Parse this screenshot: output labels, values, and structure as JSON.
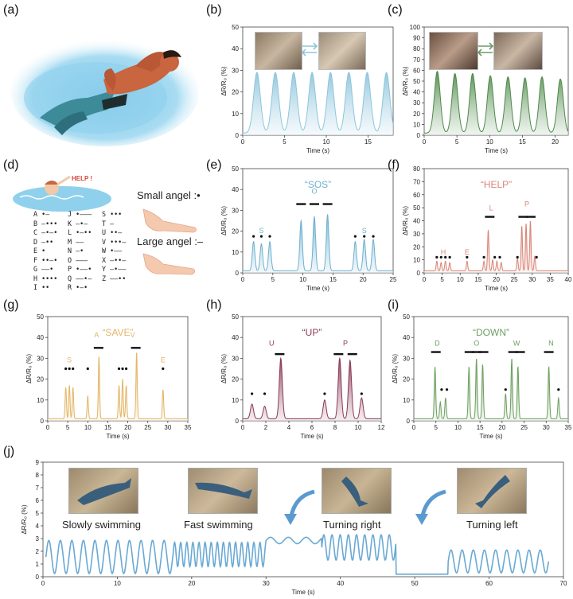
{
  "labels": {
    "a": "(a)",
    "b": "(b)",
    "c": "(c)",
    "d": "(d)",
    "e": "(e)",
    "f": "(f)",
    "g": "(g)",
    "h": "(h)",
    "i": "(i)",
    "j": "(j)"
  },
  "ylabel": "ΔR/R₀ (%)",
  "xlabel": "Time (s)",
  "help_text": "HELP !",
  "small_angle": "Small angel :•",
  "large_angle": "Large angel :–",
  "morse": [
    [
      "A •–",
      "J •–––",
      "S •••"
    ],
    [
      "B –•••",
      "K –•–",
      "T –"
    ],
    [
      "C –•–•",
      "L •–••",
      "U ••–"
    ],
    [
      "D –••",
      "M ––",
      "V •••–"
    ],
    [
      "E •",
      "N –•",
      "W •––"
    ],
    [
      "F ••–•",
      "O –––",
      "X –••–"
    ],
    [
      "G ––•",
      "P •––•",
      "Y –•––"
    ],
    [
      "H ••••",
      "Q ––•–",
      "Z ––••"
    ],
    [
      "I ••",
      "R •–•",
      ""
    ]
  ],
  "fish_labels": [
    "Slowly swimming",
    "Fast swimming",
    "Turning right",
    "Turning left"
  ],
  "chart_data": [
    {
      "id": "b",
      "type": "area",
      "color": "#8ec5dc",
      "xlim": [
        0,
        18
      ],
      "xticks": [
        0,
        5,
        10,
        15
      ],
      "ylim": [
        0,
        50
      ],
      "yticks": [
        0,
        10,
        20,
        30,
        40,
        50
      ],
      "peaks": [
        [
          1.7,
          29
        ],
        [
          3.9,
          29
        ],
        [
          6.1,
          29
        ],
        [
          8.3,
          29
        ],
        [
          10.5,
          29
        ],
        [
          12.7,
          29
        ],
        [
          14.9,
          29
        ],
        [
          17.2,
          29
        ]
      ],
      "width": 0.85
    },
    {
      "id": "c",
      "type": "area",
      "color": "#4e8a4a",
      "xlim": [
        0,
        22
      ],
      "xticks": [
        0,
        5,
        10,
        15,
        20
      ],
      "ylim": [
        0,
        100
      ],
      "yticks": [
        0,
        10,
        20,
        30,
        40,
        50,
        60,
        70,
        80,
        90,
        100
      ],
      "peaks": [
        [
          2.0,
          59
        ],
        [
          4.7,
          57
        ],
        [
          7.4,
          57
        ],
        [
          10.1,
          55
        ],
        [
          12.8,
          54
        ],
        [
          15.4,
          53
        ],
        [
          18.0,
          54
        ],
        [
          20.8,
          52
        ]
      ],
      "width": 0.95
    },
    {
      "id": "e",
      "type": "area",
      "title": "SOS",
      "color": "#6fb1cf",
      "xlim": [
        0,
        25
      ],
      "xticks": [
        0,
        5,
        10,
        15,
        20,
        25
      ],
      "ylim": [
        0,
        50
      ],
      "yticks": [
        0,
        10,
        20,
        30,
        40,
        50
      ],
      "peaks": [
        [
          1.8,
          15
        ],
        [
          3.1,
          14
        ],
        [
          4.5,
          15
        ],
        [
          9.7,
          25
        ],
        [
          11.9,
          27
        ],
        [
          14.1,
          28
        ],
        [
          18.7,
          15
        ],
        [
          20.2,
          16
        ],
        [
          21.7,
          16
        ]
      ],
      "width": 0.45,
      "annotations": [
        {
          "letter": "S",
          "x": 3.1,
          "y": 19
        },
        {
          "letter": "O",
          "x": 11.9,
          "y": 38
        },
        {
          "letter": "S",
          "x": 20.2,
          "y": 19
        }
      ],
      "marks": [
        {
          "x": 1.8,
          "y": 17.5,
          "dash": 0
        },
        {
          "x": 3.1,
          "y": 17.5,
          "dash": 0
        },
        {
          "x": 4.5,
          "y": 17.5,
          "dash": 0
        },
        {
          "x": 9.7,
          "y": 33,
          "dash": 1
        },
        {
          "x": 11.9,
          "y": 33,
          "dash": 1
        },
        {
          "x": 14.1,
          "y": 33,
          "dash": 1
        },
        {
          "x": 18.7,
          "y": 17.5,
          "dash": 0
        },
        {
          "x": 20.2,
          "y": 17.5,
          "dash": 0
        },
        {
          "x": 21.7,
          "y": 17.5,
          "dash": 0
        }
      ]
    },
    {
      "id": "f",
      "type": "area",
      "title": "HELP",
      "color": "#d98577",
      "xlim": [
        0,
        40
      ],
      "xticks": [
        0,
        5,
        10,
        15,
        20,
        25,
        30,
        35,
        40
      ],
      "ylim": [
        0,
        80
      ],
      "yticks": [
        0,
        10,
        20,
        30,
        40,
        50,
        60,
        70,
        80
      ],
      "peaks": [
        [
          3.5,
          9
        ],
        [
          4.7,
          8
        ],
        [
          5.9,
          9
        ],
        [
          7.1,
          8
        ],
        [
          11.9,
          9
        ],
        [
          16.6,
          9
        ],
        [
          17.8,
          33
        ],
        [
          19.0,
          10
        ],
        [
          20.2,
          9
        ],
        [
          21.4,
          8
        ],
        [
          25.9,
          11
        ],
        [
          27.1,
          36
        ],
        [
          28.3,
          38
        ],
        [
          29.5,
          40
        ],
        [
          30.7,
          13
        ]
      ],
      "width": 0.4,
      "annotations": [
        {
          "letter": "H",
          "x": 5.3,
          "y": 14
        },
        {
          "letter": "E",
          "x": 11.9,
          "y": 14
        },
        {
          "letter": "L",
          "x": 18.6,
          "y": 48
        },
        {
          "letter": "P",
          "x": 28.5,
          "y": 51
        }
      ],
      "marks": [
        {
          "x": 3.5,
          "y": 12,
          "dash": 0
        },
        {
          "x": 4.7,
          "y": 12,
          "dash": 0
        },
        {
          "x": 5.9,
          "y": 12,
          "dash": 0
        },
        {
          "x": 7.1,
          "y": 12,
          "dash": 0
        },
        {
          "x": 11.9,
          "y": 12,
          "dash": 0
        },
        {
          "x": 16.6,
          "y": 12,
          "dash": 0
        },
        {
          "x": 18.2,
          "y": 43,
          "dash": 1
        },
        {
          "x": 19.6,
          "y": 12,
          "dash": 0
        },
        {
          "x": 21.0,
          "y": 12,
          "dash": 0
        },
        {
          "x": 25.9,
          "y": 12,
          "dash": 0
        },
        {
          "x": 27.5,
          "y": 43,
          "dash": 1
        },
        {
          "x": 29.6,
          "y": 43,
          "dash": 1
        },
        {
          "x": 31.2,
          "y": 12,
          "dash": 0
        }
      ]
    },
    {
      "id": "g",
      "type": "area",
      "title": "SAVE",
      "color": "#e3b567",
      "xlim": [
        0,
        35
      ],
      "xticks": [
        0,
        5,
        10,
        15,
        20,
        25,
        30,
        35
      ],
      "ylim": [
        0,
        50
      ],
      "yticks": [
        0,
        10,
        20,
        30,
        40,
        50
      ],
      "peaks": [
        [
          4.5,
          16
        ],
        [
          5.4,
          17
        ],
        [
          6.3,
          16
        ],
        [
          10.0,
          12
        ],
        [
          12.8,
          31
        ],
        [
          17.8,
          17
        ],
        [
          18.7,
          20
        ],
        [
          19.6,
          17
        ],
        [
          22.2,
          33
        ],
        [
          28.8,
          15
        ]
      ],
      "width": 0.35,
      "annotations": [
        {
          "letter": "S",
          "x": 5.4,
          "y": 28
        },
        {
          "letter": "A",
          "x": 12.2,
          "y": 40
        },
        {
          "letter": "V",
          "x": 21.2,
          "y": 40
        },
        {
          "letter": "E",
          "x": 28.8,
          "y": 28
        }
      ],
      "marks": [
        {
          "x": 4.5,
          "y": 25,
          "dash": 0
        },
        {
          "x": 5.4,
          "y": 25,
          "dash": 0
        },
        {
          "x": 6.3,
          "y": 25,
          "dash": 0
        },
        {
          "x": 10.0,
          "y": 25,
          "dash": 0
        },
        {
          "x": 12.7,
          "y": 35,
          "dash": 1
        },
        {
          "x": 17.8,
          "y": 25,
          "dash": 0
        },
        {
          "x": 18.7,
          "y": 25,
          "dash": 0
        },
        {
          "x": 19.6,
          "y": 25,
          "dash": 0
        },
        {
          "x": 22.0,
          "y": 35,
          "dash": 1
        },
        {
          "x": 28.8,
          "y": 25,
          "dash": 0
        }
      ]
    },
    {
      "id": "h",
      "type": "area",
      "title": "UP",
      "color": "#8a3a57",
      "xlim": [
        0,
        12
      ],
      "xticks": [
        0,
        2,
        4,
        6,
        8,
        10,
        12
      ],
      "ylim": [
        0,
        50
      ],
      "yticks": [
        0,
        10,
        20,
        30,
        40,
        50
      ],
      "peaks": [
        [
          0.8,
          8
        ],
        [
          1.9,
          7
        ],
        [
          3.3,
          30
        ],
        [
          7.1,
          10
        ],
        [
          8.4,
          30
        ],
        [
          9.3,
          29
        ],
        [
          10.3,
          11
        ]
      ],
      "width": 0.28,
      "annotations": [
        {
          "letter": "U",
          "x": 2.5,
          "y": 36
        },
        {
          "letter": "P",
          "x": 8.9,
          "y": 36
        }
      ],
      "marks": [
        {
          "x": 0.8,
          "y": 13,
          "dash": 0
        },
        {
          "x": 1.9,
          "y": 13,
          "dash": 0
        },
        {
          "x": 3.2,
          "y": 32,
          "dash": 1
        },
        {
          "x": 7.1,
          "y": 13,
          "dash": 0
        },
        {
          "x": 8.3,
          "y": 32,
          "dash": 1
        },
        {
          "x": 9.5,
          "y": 32,
          "dash": 1
        },
        {
          "x": 10.3,
          "y": 13,
          "dash": 0
        }
      ]
    },
    {
      "id": "i",
      "type": "area",
      "title": "DOWN",
      "color": "#6ea061",
      "xlim": [
        0,
        35
      ],
      "xticks": [
        0,
        5,
        10,
        15,
        20,
        25,
        30,
        35
      ],
      "ylim": [
        0,
        50
      ],
      "yticks": [
        0,
        10,
        20,
        30,
        40,
        50
      ],
      "peaks": [
        [
          4.8,
          26
        ],
        [
          6.0,
          9
        ],
        [
          7.2,
          11
        ],
        [
          12.5,
          26
        ],
        [
          14.2,
          30
        ],
        [
          15.6,
          27
        ],
        [
          20.8,
          13
        ],
        [
          22.2,
          30
        ],
        [
          23.6,
          26
        ],
        [
          30.6,
          26
        ],
        [
          32.8,
          11
        ]
      ],
      "width": 0.35,
      "annotations": [
        {
          "letter": "D",
          "x": 5.3,
          "y": 36
        },
        {
          "letter": "O",
          "x": 14.2,
          "y": 36
        },
        {
          "letter": "W",
          "x": 23.3,
          "y": 36
        },
        {
          "letter": "N",
          "x": 31.1,
          "y": 36
        }
      ],
      "marks": [
        {
          "x": 5.0,
          "y": 33,
          "dash": 1
        },
        {
          "x": 6.3,
          "y": 15,
          "dash": 0
        },
        {
          "x": 7.5,
          "y": 15,
          "dash": 0
        },
        {
          "x": 12.6,
          "y": 33,
          "dash": 1
        },
        {
          "x": 14.2,
          "y": 33,
          "dash": 1
        },
        {
          "x": 15.8,
          "y": 33,
          "dash": 1
        },
        {
          "x": 20.8,
          "y": 15,
          "dash": 0
        },
        {
          "x": 22.5,
          "y": 33,
          "dash": 1
        },
        {
          "x": 24.1,
          "y": 33,
          "dash": 1
        },
        {
          "x": 30.6,
          "y": 33,
          "dash": 1
        },
        {
          "x": 32.8,
          "y": 15,
          "dash": 0
        }
      ]
    },
    {
      "id": "j",
      "type": "line",
      "color": "#6aa9d3",
      "xlim": [
        0,
        70
      ],
      "xticks": [
        0,
        10,
        20,
        30,
        40,
        50,
        60,
        70
      ],
      "ylim": [
        0,
        9
      ],
      "yticks": [
        0,
        1,
        2,
        3,
        4,
        5,
        6,
        7,
        8,
        9
      ],
      "segments": [
        {
          "x0": 0.4,
          "x1": 17.5,
          "period": 1.55,
          "amp": 1.3,
          "base": 1.55
        },
        {
          "x0": 17.5,
          "x1": 30,
          "period": 0.82,
          "amp": 0.95,
          "base": 1.75
        },
        {
          "x0": 30,
          "x1": 37.5,
          "period": 2.4,
          "amp": 0.25,
          "base": 2.85
        },
        {
          "x0": 37.5,
          "x1": 47.5,
          "period": 1.1,
          "amp": 1.0,
          "base": 2.3
        },
        {
          "x0": 47.5,
          "x1": 54.5,
          "period": 0,
          "amp": 0,
          "base": 0.2
        },
        {
          "x0": 54.5,
          "x1": 68,
          "period": 1.5,
          "amp": 0.9,
          "base": 1.2
        }
      ]
    }
  ]
}
